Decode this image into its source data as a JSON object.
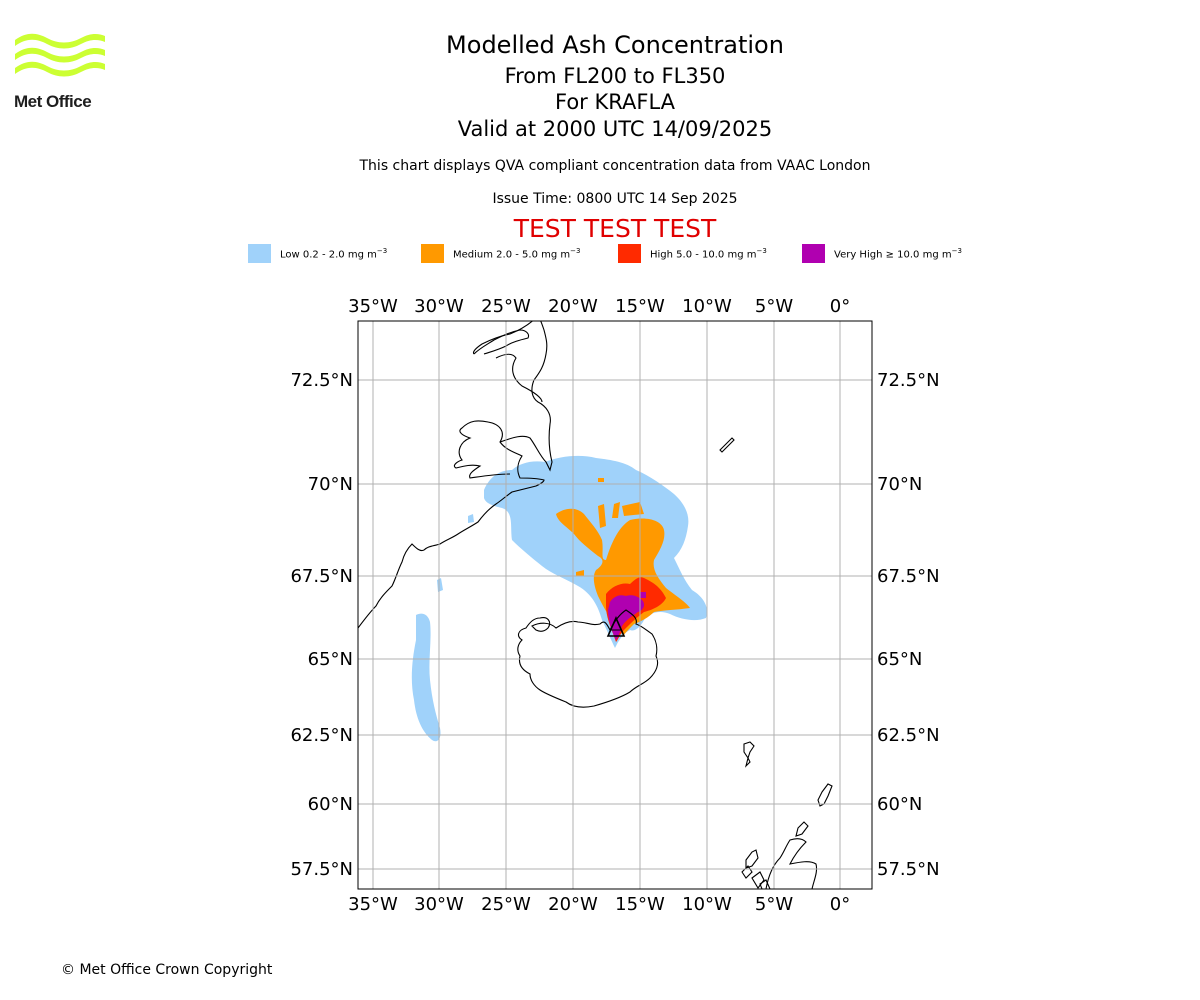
{
  "header": {
    "title": "Modelled Ash Concentration",
    "subtitle_levels": "From FL200 to FL350",
    "subtitle_volcano": "For KRAFLA",
    "subtitle_valid": "Valid at 2000 UTC 14/09/2025",
    "note": "This chart displays QVA compliant concentration data from VAAC London",
    "issue_time": "Issue Time: 0800 UTC 14 Sep 2025",
    "test_banner": "TEST TEST TEST"
  },
  "logo": {
    "text": "Met Office",
    "color": "#ccff33",
    "icon": "met-office-waves-logo"
  },
  "legend": [
    {
      "label": "Low 0.2 - 2.0 mg m",
      "exp": "−3",
      "color": "#a0d2fa"
    },
    {
      "label": "Medium 2.0 - 5.0 mg m",
      "exp": "−3",
      "color": "#ff9900"
    },
    {
      "label": "High 5.0 - 10.0 mg m",
      "exp": "−3",
      "color": "#ff2a00"
    },
    {
      "label": "Very High  ≥  10.0 mg m",
      "exp": "−3",
      "color": "#b000b0"
    }
  ],
  "map": {
    "lon_ticks": [
      "35°W",
      "30°W",
      "25°W",
      "20°W",
      "15°W",
      "10°W",
      "5°W",
      "0°"
    ],
    "lat_ticks": [
      "72.5°N",
      "70°N",
      "67.5°N",
      "65°N",
      "62.5°N",
      "60°N",
      "57.5°N"
    ],
    "volcano": {
      "name": "KRAFLA",
      "lat": 65.73,
      "lon": -16.78,
      "marker": "volcano-triangle-icon"
    }
  },
  "footer": {
    "copyright": "© Met Office Crown Copyright"
  }
}
